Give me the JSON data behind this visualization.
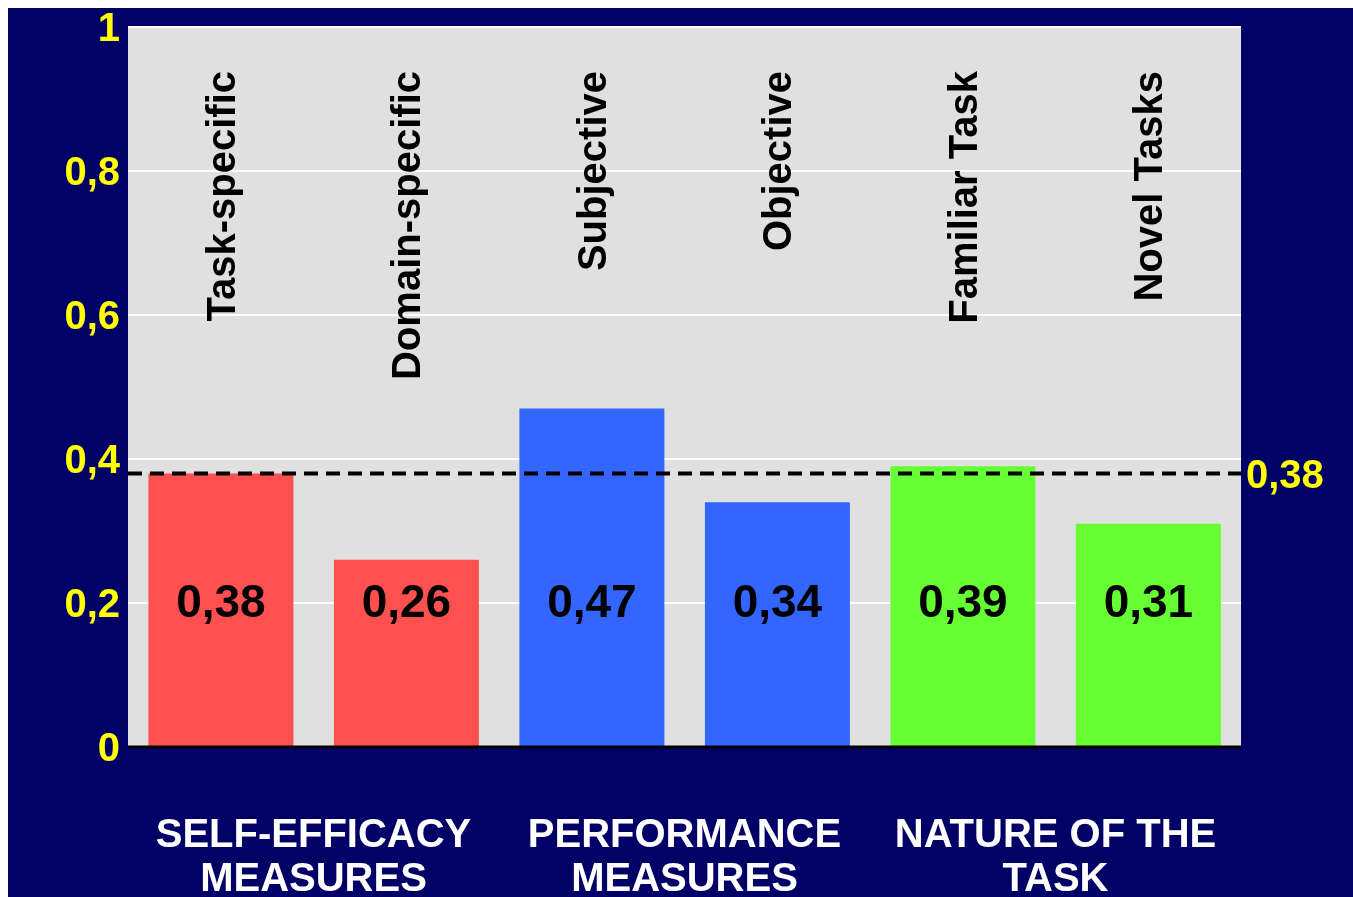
{
  "chart_data": {
    "type": "bar",
    "categories": [
      "Task-specific",
      "Domain-specific",
      "Subjective",
      "Objective",
      "Familiar Task",
      "Novel Tasks"
    ],
    "values": [
      0.38,
      0.26,
      0.47,
      0.34,
      0.39,
      0.31
    ],
    "value_labels": [
      "0,38",
      "0,26",
      "0,47",
      "0,34",
      "0,39",
      "0,31"
    ],
    "colors": [
      "#ff5050",
      "#ff5050",
      "#3366ff",
      "#3366ff",
      "#66ff33",
      "#66ff33"
    ],
    "ylim": [
      0,
      1
    ],
    "yticks": [
      0,
      {
        "value": 0.2,
        "label": "0,2"
      },
      {
        "value": 0.4,
        "label": "0,4"
      },
      {
        "value": 0.6,
        "label": "0,6"
      },
      {
        "value": 0.8,
        "label": "0,8"
      },
      1
    ],
    "grid": "y",
    "ref_lines": [
      {
        "axis": "y",
        "value": 0.38,
        "label": "0,38",
        "color": "#000000",
        "line_style": "dashed"
      }
    ],
    "annotations": [
      "SELF-EFFICACY MEASURES",
      "PERFORMANCE MEASURES",
      "NATURE OF THE TASK"
    ]
  }
}
